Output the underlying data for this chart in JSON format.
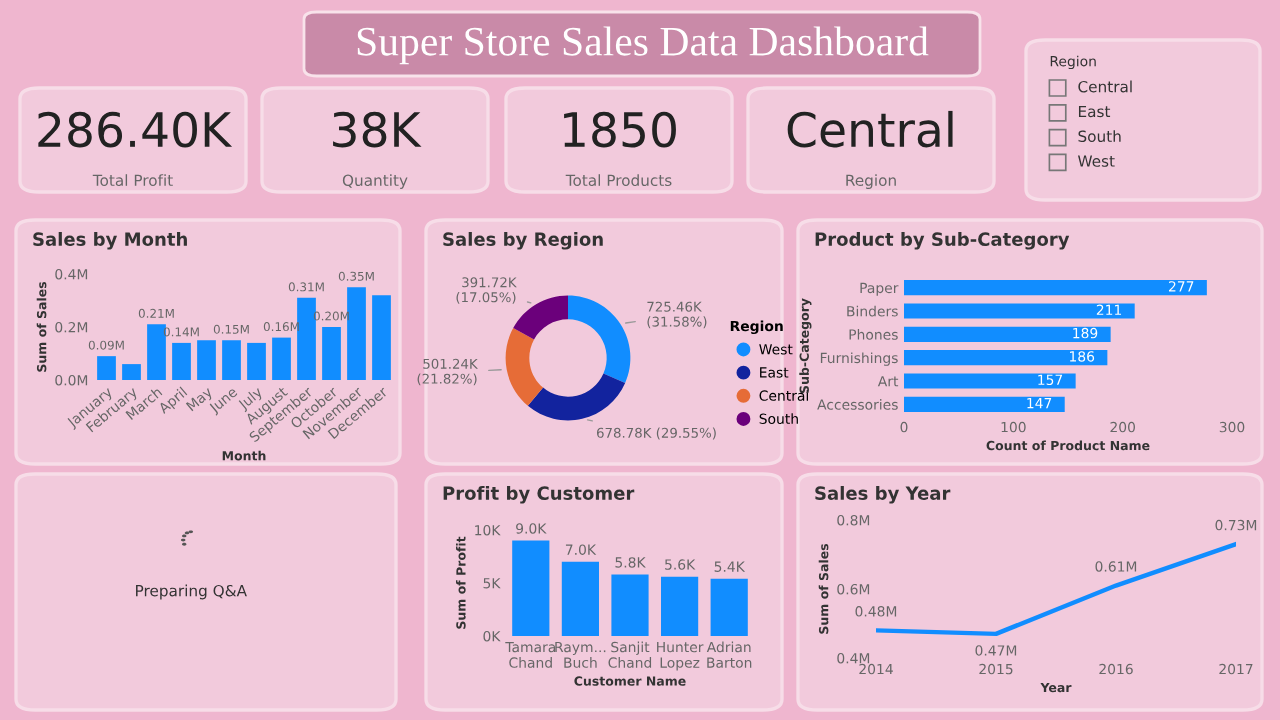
{
  "chart_data": [
    {
      "type": "other",
      "title": "Super Store Sales Data Dashboard"
    },
    {
      "type": "other",
      "annotations": [
        "286.40K",
        "Total Profit"
      ]
    },
    {
      "type": "other",
      "annotations": [
        "38K",
        "Quantity"
      ]
    },
    {
      "type": "other",
      "annotations": [
        "1850",
        "Total Products"
      ]
    },
    {
      "type": "other",
      "annotations": [
        "Central",
        "Region"
      ]
    },
    {
      "type": "other",
      "title": "Region",
      "annotations": [
        "Central",
        "East",
        "South",
        "West"
      ]
    },
    {
      "type": "bar",
      "title": "Sales by Month",
      "xlabel": "Month",
      "ylabel": "Sum of Sales",
      "categories": [
        "January",
        "February",
        "March",
        "April",
        "May",
        "June",
        "July",
        "August",
        "September",
        "October",
        "November",
        "December"
      ],
      "values": [
        0.09,
        0.06,
        0.21,
        0.14,
        0.15,
        0.15,
        0.14,
        0.16,
        0.31,
        0.2,
        0.35,
        0.32
      ],
      "value_labels": [
        "0.09M",
        null,
        "0.21M",
        "0.14M",
        null,
        "0.15M",
        null,
        "0.16M",
        "0.31M",
        "0.20M",
        "0.35M",
        null
      ],
      "color": "#118dff",
      "ylim": [
        0,
        0.4
      ],
      "yticks": [
        {
          "value": 0,
          "label": "0.0M"
        },
        {
          "value": 0.2,
          "label": "0.2M"
        },
        {
          "value": 0.4,
          "label": "0.4M"
        }
      ]
    },
    {
      "type": "donut",
      "title": "Sales by Region",
      "legend_title": "Region",
      "legend": "right",
      "categories": [
        "West",
        "East",
        "Central",
        "South"
      ],
      "values": [
        31.58,
        29.55,
        21.82,
        17.05
      ],
      "value_labels": [
        "725.46K (31.58%)",
        "678.78K (29.55%)",
        "501.24K (21.82%)",
        "391.72K (17.05%)"
      ],
      "colors": [
        "#118dff",
        "#12239e",
        "#e66c37",
        "#6b007b"
      ]
    },
    {
      "type": "bar",
      "orientation": "horizontal",
      "title": "Product by Sub-Category",
      "xlabel": "Count of Product Name",
      "ylabel": "Sub-Category",
      "categories": [
        "Paper",
        "Binders",
        "Phones",
        "Furnishings",
        "Art",
        "Accessories"
      ],
      "values": [
        277,
        211,
        189,
        186,
        157,
        147
      ],
      "data_labels": true,
      "color": "#118dff",
      "xlim": [
        0,
        300
      ],
      "xticks": [
        0,
        100,
        200,
        300
      ]
    },
    {
      "type": "other",
      "annotations": [
        "Preparing Q&A"
      ]
    },
    {
      "type": "bar",
      "title": "Profit by Customer",
      "xlabel": "Customer Name",
      "ylabel": "Sum of Profit",
      "categories": [
        "Tamara Chand",
        "Raym... Buch",
        "Sanjit Chand",
        "Hunter Lopez",
        "Adrian Barton"
      ],
      "values": [
        9.0,
        7.0,
        5.8,
        5.6,
        5.4
      ],
      "value_labels": [
        "9.0K",
        "7.0K",
        "5.8K",
        "5.6K",
        "5.4K"
      ],
      "color": "#118dff",
      "ylim": [
        0,
        10
      ],
      "yticks": [
        {
          "value": 0,
          "label": "0K"
        },
        {
          "value": 5,
          "label": "5K"
        },
        {
          "value": 10,
          "label": "10K"
        }
      ]
    },
    {
      "type": "line",
      "title": "Sales by Year",
      "xlabel": "Year",
      "ylabel": "Sum of Sales",
      "x": [
        2014,
        2015,
        2016,
        2017
      ],
      "values": [
        0.48,
        0.47,
        0.61,
        0.73
      ],
      "value_labels": [
        "0.48M",
        "0.47M",
        "0.61M",
        "0.73M"
      ],
      "color": "#118dff",
      "xlim": [
        2014,
        2017
      ],
      "xticks": [
        2014,
        2015,
        2016,
        2017
      ],
      "ylim": [
        0.4,
        0.8
      ],
      "yticks": [
        {
          "value": 0.4,
          "label": "0.4M"
        },
        {
          "value": 0.6,
          "label": "0.6M"
        },
        {
          "value": 0.8,
          "label": "0.8M"
        }
      ]
    }
  ]
}
